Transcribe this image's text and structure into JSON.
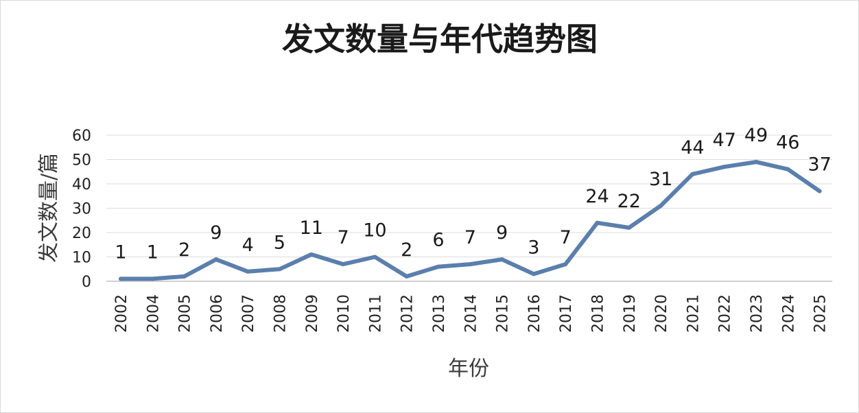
{
  "chart_data": {
    "type": "line",
    "title": "发文数量与年代趋势图",
    "xlabel": "年份",
    "ylabel": "发文数量/篇",
    "categories": [
      "2002",
      "2004",
      "2005",
      "2006",
      "2007",
      "2008",
      "2009",
      "2010",
      "2011",
      "2012",
      "2013",
      "2014",
      "2015",
      "2016",
      "2017",
      "2018",
      "2019",
      "2020",
      "2021",
      "2022",
      "2023",
      "2024",
      "2025"
    ],
    "series": [
      {
        "values": [
          1,
          1,
          2,
          9,
          4,
          5,
          11,
          7,
          10,
          2,
          6,
          7,
          9,
          3,
          7,
          24,
          22,
          31,
          44,
          47,
          49,
          46,
          37
        ]
      }
    ],
    "yticks": [
      "0",
      "10",
      "20",
      "30",
      "40",
      "50",
      "60"
    ],
    "ylim": [
      0,
      60
    ],
    "grid": true,
    "legend": "none",
    "data_labels": true,
    "line_color": "#5b7fad"
  }
}
